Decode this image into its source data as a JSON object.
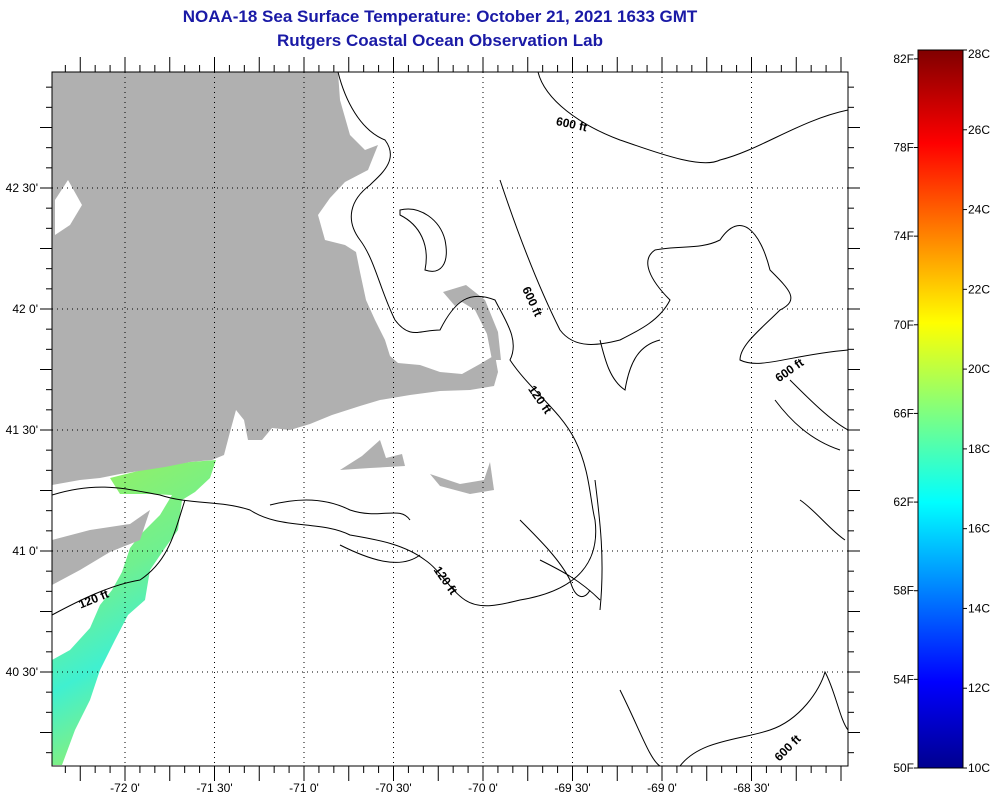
{
  "header": {
    "title": "NOAA-18 Sea Surface Temperature:  October 21, 2021 1633 GMT",
    "subtitle": "Rutgers Coastal Ocean Observation Lab"
  },
  "map": {
    "lon_labels": [
      {
        "value": -72.0,
        "label": "-72 0'"
      },
      {
        "value": -71.5,
        "label": "-71 30'"
      },
      {
        "value": -71.0,
        "label": "-71 0'"
      },
      {
        "value": -70.5,
        "label": "-70 30'"
      },
      {
        "value": -70.0,
        "label": "-70 0'"
      },
      {
        "value": -69.5,
        "label": "-69 30'"
      },
      {
        "value": -69.0,
        "label": "-69 0'"
      },
      {
        "value": -68.5,
        "label": "-68 30'"
      }
    ],
    "lat_labels": [
      {
        "value": 42.5,
        "label": "42 30'"
      },
      {
        "value": 42.0,
        "label": "42 0'"
      },
      {
        "value": 41.5,
        "label": "41 30'"
      },
      {
        "value": 41.0,
        "label": "41 0'"
      },
      {
        "value": 40.5,
        "label": "40 30'"
      }
    ],
    "contour_labels": [
      "600 ft",
      "600 ft",
      "600 ft",
      "600 ft",
      "120 ft",
      "120 ft",
      "120 ft"
    ],
    "colors": {
      "land": "#b0b0b0",
      "title": "#1a1aa6",
      "sst_warm": "#8cf064",
      "sst_cool": "#40f0c8"
    }
  },
  "colorbar": {
    "f_ticks": [
      "82F",
      "78F",
      "74F",
      "70F",
      "66F",
      "62F",
      "58F",
      "54F",
      "50F"
    ],
    "f_values": [
      82,
      78,
      74,
      70,
      66,
      62,
      58,
      54,
      50
    ],
    "c_ticks": [
      "28C",
      "26C",
      "24C",
      "22C",
      "20C",
      "18C",
      "16C",
      "14C",
      "12C",
      "10C"
    ],
    "c_values": [
      28,
      26,
      24,
      22,
      20,
      18,
      16,
      14,
      12,
      10
    ],
    "range_c": [
      10,
      28
    ]
  }
}
